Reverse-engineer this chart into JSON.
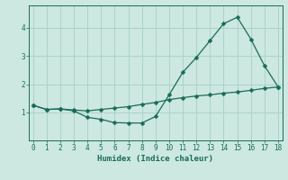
{
  "xlabel": "Humidex (Indice chaleur)",
  "background_color": "#cce8e0",
  "grid_color": "#a8d0c8",
  "line_color": "#1a6b5a",
  "line1_y": [
    1.25,
    1.1,
    1.12,
    1.05,
    0.82,
    0.75,
    0.63,
    0.62,
    0.62,
    0.85,
    1.62,
    2.42,
    2.95,
    3.55,
    4.15,
    4.38,
    3.6,
    2.65,
    1.9
  ],
  "line2_y": [
    1.25,
    1.1,
    1.12,
    1.08,
    1.05,
    1.1,
    1.15,
    1.2,
    1.28,
    1.35,
    1.45,
    1.52,
    1.58,
    1.62,
    1.68,
    1.72,
    1.78,
    1.85,
    1.9
  ],
  "x": [
    0,
    1,
    2,
    3,
    4,
    5,
    6,
    7,
    8,
    9,
    10,
    11,
    12,
    13,
    14,
    15,
    16,
    17,
    18
  ],
  "ylim": [
    0.0,
    4.8
  ],
  "xlim": [
    -0.3,
    18.3
  ],
  "yticks": [
    1,
    2,
    3,
    4
  ],
  "xticks": [
    0,
    1,
    2,
    3,
    4,
    5,
    6,
    7,
    8,
    9,
    10,
    11,
    12,
    13,
    14,
    15,
    16,
    17,
    18
  ],
  "xlabel_fontsize": 6.5,
  "tick_fontsize": 5.5,
  "marker_size": 2.5,
  "linewidth": 0.9
}
